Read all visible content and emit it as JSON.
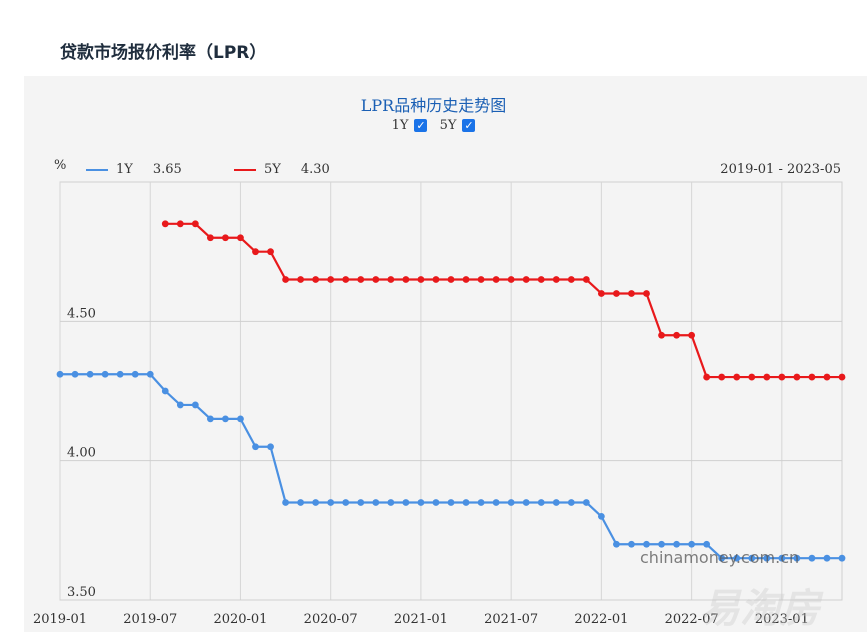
{
  "page": {
    "title": "贷款市场报价利率（LPR）"
  },
  "chart_data": {
    "type": "line",
    "title": "LPR品种历史走势图",
    "unit": "%",
    "range_label": "2019-01 - 2023-05",
    "toggles": [
      {
        "label": "1Y",
        "checked": true
      },
      {
        "label": "5Y",
        "checked": true
      }
    ],
    "legend": [
      {
        "name": "1Y",
        "latest": "3.65",
        "color": "#4a90e2"
      },
      {
        "name": "5Y",
        "latest": "4.30",
        "color": "#e8191b"
      }
    ],
    "x_ticks": [
      "2019-01",
      "2019-07",
      "2020-01",
      "2020-07",
      "2021-01",
      "2021-07",
      "2022-01",
      "2022-07",
      "2023-01"
    ],
    "y_ticks": [
      "4.50",
      "4.00",
      "3.50"
    ],
    "ylim": [
      3.5,
      5.0
    ],
    "series": [
      {
        "name": "1Y",
        "color": "#4a90e2",
        "start": "2019-01",
        "values": [
          4.31,
          4.31,
          4.31,
          4.31,
          4.31,
          4.31,
          4.31,
          4.25,
          4.2,
          4.2,
          4.15,
          4.15,
          4.15,
          4.05,
          4.05,
          3.85,
          3.85,
          3.85,
          3.85,
          3.85,
          3.85,
          3.85,
          3.85,
          3.85,
          3.85,
          3.85,
          3.85,
          3.85,
          3.85,
          3.85,
          3.85,
          3.85,
          3.85,
          3.85,
          3.85,
          3.85,
          3.8,
          3.7,
          3.7,
          3.7,
          3.7,
          3.7,
          3.7,
          3.7,
          3.65,
          3.65,
          3.65,
          3.65,
          3.65,
          3.65,
          3.65,
          3.65,
          3.65
        ]
      },
      {
        "name": "5Y",
        "color": "#e8191b",
        "start": "2019-08",
        "values": [
          4.85,
          4.85,
          4.85,
          4.8,
          4.8,
          4.8,
          4.75,
          4.75,
          4.65,
          4.65,
          4.65,
          4.65,
          4.65,
          4.65,
          4.65,
          4.65,
          4.65,
          4.65,
          4.65,
          4.65,
          4.65,
          4.65,
          4.65,
          4.65,
          4.65,
          4.65,
          4.65,
          4.65,
          4.65,
          4.6,
          4.6,
          4.6,
          4.6,
          4.45,
          4.45,
          4.45,
          4.3,
          4.3,
          4.3,
          4.3,
          4.3,
          4.3,
          4.3,
          4.3,
          4.3,
          4.3
        ]
      }
    ]
  },
  "watermarks": [
    "chinamoney.com.cn",
    "易淘房"
  ]
}
